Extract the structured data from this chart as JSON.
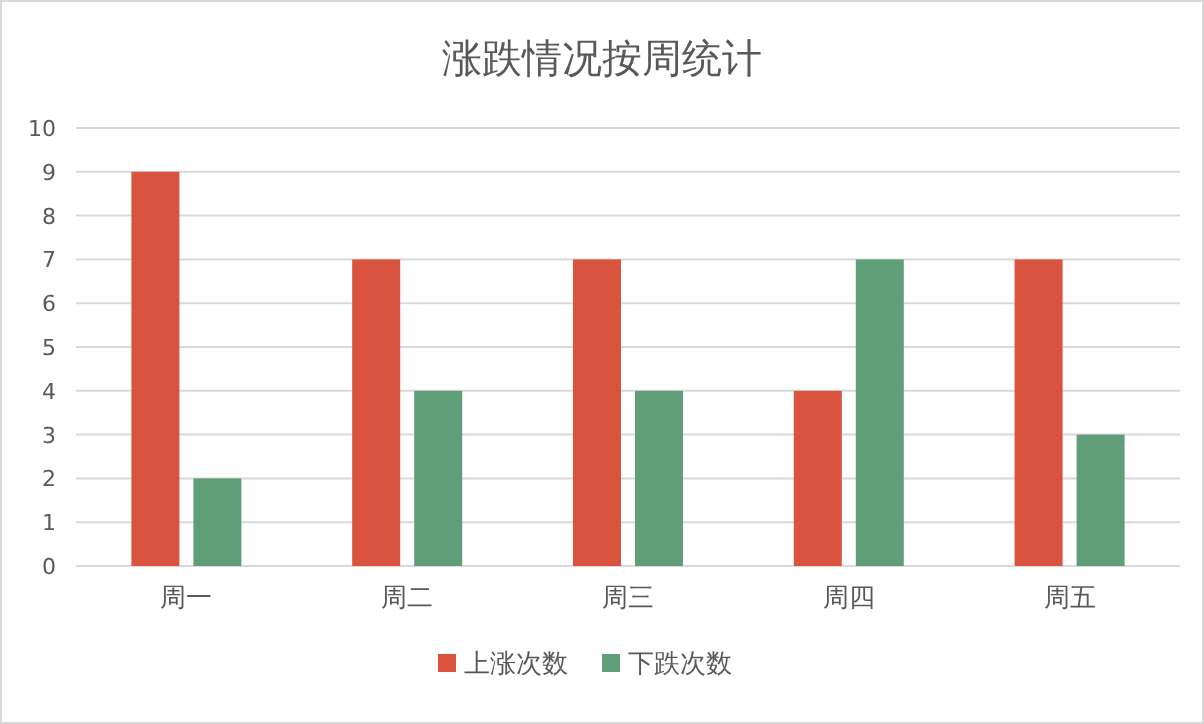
{
  "chart_data": {
    "type": "bar",
    "title": "涨跌情况按周统计",
    "categories": [
      "周一",
      "周二",
      "周三",
      "周四",
      "周五"
    ],
    "series": [
      {
        "name": "上涨次数",
        "color": "#d9533f",
        "values": [
          9,
          7,
          7,
          4,
          7
        ]
      },
      {
        "name": "下跌次数",
        "color": "#5f9e78",
        "values": [
          2,
          4,
          4,
          7,
          3
        ]
      }
    ],
    "ylim": [
      0,
      10
    ],
    "yticks": [
      0,
      1,
      2,
      3,
      4,
      5,
      6,
      7,
      8,
      9,
      10
    ],
    "grid": "y",
    "legend": "bottom"
  }
}
